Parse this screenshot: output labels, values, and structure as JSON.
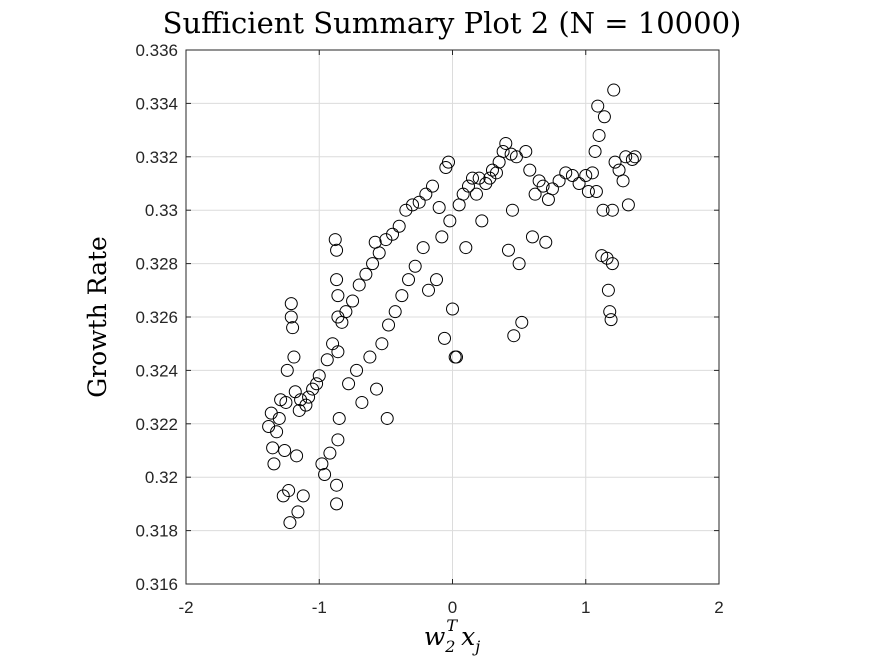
{
  "chart_data": {
    "type": "scatter",
    "title": "Sufficient Summary Plot 2 (N = 10000)",
    "xlabel": "w_2^T x_j",
    "ylabel": "Growth Rate",
    "xlim": [
      -2,
      2
    ],
    "ylim": [
      0.316,
      0.336
    ],
    "xticks": [
      "-2",
      "-1",
      "0",
      "1",
      "2"
    ],
    "yticks": [
      "0.316",
      "0.318",
      "0.32",
      "0.322",
      "0.324",
      "0.326",
      "0.328",
      "0.33",
      "0.332",
      "0.334",
      "0.336"
    ],
    "grid": true,
    "marker": "open-circle",
    "marker_color": "#000000",
    "series": [
      {
        "points": [
          [
            -1.38,
            0.3219
          ],
          [
            -1.36,
            0.3224
          ],
          [
            -1.35,
            0.3211
          ],
          [
            -1.34,
            0.3205
          ],
          [
            -1.32,
            0.3217
          ],
          [
            -1.3,
            0.3222
          ],
          [
            -1.29,
            0.3229
          ],
          [
            -1.27,
            0.3193
          ],
          [
            -1.26,
            0.321
          ],
          [
            -1.25,
            0.3228
          ],
          [
            -1.24,
            0.324
          ],
          [
            -1.23,
            0.3195
          ],
          [
            -1.22,
            0.3183
          ],
          [
            -1.21,
            0.326
          ],
          [
            -1.21,
            0.3265
          ],
          [
            -1.2,
            0.3256
          ],
          [
            -1.19,
            0.3245
          ],
          [
            -1.18,
            0.3232
          ],
          [
            -1.17,
            0.3208
          ],
          [
            -1.16,
            0.3187
          ],
          [
            -1.15,
            0.3225
          ],
          [
            -1.14,
            0.3229
          ],
          [
            -1.12,
            0.3193
          ],
          [
            -1.1,
            0.3227
          ],
          [
            -1.08,
            0.323
          ],
          [
            -1.05,
            0.3233
          ],
          [
            -1.02,
            0.3235
          ],
          [
            -1.0,
            0.3238
          ],
          [
            -0.98,
            0.3205
          ],
          [
            -0.96,
            0.3201
          ],
          [
            -0.94,
            0.3244
          ],
          [
            -0.92,
            0.3209
          ],
          [
            -0.9,
            0.325
          ],
          [
            -0.88,
            0.3289
          ],
          [
            -0.87,
            0.3285
          ],
          [
            -0.87,
            0.3274
          ],
          [
            -0.86,
            0.3268
          ],
          [
            -0.86,
            0.326
          ],
          [
            -0.86,
            0.3247
          ],
          [
            -0.86,
            0.3214
          ],
          [
            -0.87,
            0.3197
          ],
          [
            -0.87,
            0.319
          ],
          [
            -0.85,
            0.3222
          ],
          [
            -0.83,
            0.3258
          ],
          [
            -0.8,
            0.3262
          ],
          [
            -0.78,
            0.3235
          ],
          [
            -0.75,
            0.3266
          ],
          [
            -0.72,
            0.324
          ],
          [
            -0.7,
            0.3272
          ],
          [
            -0.68,
            0.3228
          ],
          [
            -0.65,
            0.3276
          ],
          [
            -0.62,
            0.3245
          ],
          [
            -0.6,
            0.328
          ],
          [
            -0.58,
            0.3288
          ],
          [
            -0.57,
            0.3233
          ],
          [
            -0.55,
            0.3284
          ],
          [
            -0.53,
            0.325
          ],
          [
            -0.5,
            0.3289
          ],
          [
            -0.49,
            0.3222
          ],
          [
            -0.48,
            0.3257
          ],
          [
            -0.45,
            0.3291
          ],
          [
            -0.43,
            0.3262
          ],
          [
            -0.4,
            0.3294
          ],
          [
            -0.38,
            0.3268
          ],
          [
            -0.35,
            0.33
          ],
          [
            -0.33,
            0.3274
          ],
          [
            -0.3,
            0.3302
          ],
          [
            -0.28,
            0.3279
          ],
          [
            -0.25,
            0.3303
          ],
          [
            -0.22,
            0.3286
          ],
          [
            -0.2,
            0.3306
          ],
          [
            -0.18,
            0.327
          ],
          [
            -0.15,
            0.3309
          ],
          [
            -0.12,
            0.3274
          ],
          [
            -0.1,
            0.3301
          ],
          [
            -0.08,
            0.329
          ],
          [
            -0.06,
            0.3252
          ],
          [
            -0.05,
            0.3316
          ],
          [
            -0.03,
            0.3318
          ],
          [
            -0.02,
            0.3296
          ],
          [
            0.0,
            0.3263
          ],
          [
            0.02,
            0.3245
          ],
          [
            0.03,
            0.3245
          ],
          [
            0.05,
            0.3302
          ],
          [
            0.08,
            0.3306
          ],
          [
            0.1,
            0.3286
          ],
          [
            0.12,
            0.3309
          ],
          [
            0.15,
            0.3312
          ],
          [
            0.18,
            0.3306
          ],
          [
            0.2,
            0.3312
          ],
          [
            0.22,
            0.3296
          ],
          [
            0.25,
            0.331
          ],
          [
            0.28,
            0.3312
          ],
          [
            0.3,
            0.3315
          ],
          [
            0.33,
            0.3314
          ],
          [
            0.35,
            0.3318
          ],
          [
            0.38,
            0.3322
          ],
          [
            0.4,
            0.3325
          ],
          [
            0.42,
            0.3285
          ],
          [
            0.44,
            0.3321
          ],
          [
            0.45,
            0.33
          ],
          [
            0.46,
            0.3253
          ],
          [
            0.48,
            0.332
          ],
          [
            0.5,
            0.328
          ],
          [
            0.52,
            0.3258
          ],
          [
            0.55,
            0.3322
          ],
          [
            0.58,
            0.3315
          ],
          [
            0.6,
            0.329
          ],
          [
            0.62,
            0.3306
          ],
          [
            0.65,
            0.3311
          ],
          [
            0.68,
            0.3309
          ],
          [
            0.7,
            0.3288
          ],
          [
            0.72,
            0.3304
          ],
          [
            0.75,
            0.3308
          ],
          [
            0.8,
            0.3311
          ],
          [
            0.85,
            0.3314
          ],
          [
            0.9,
            0.3313
          ],
          [
            0.95,
            0.331
          ],
          [
            1.0,
            0.3313
          ],
          [
            1.02,
            0.3307
          ],
          [
            1.05,
            0.3314
          ],
          [
            1.07,
            0.3322
          ],
          [
            1.08,
            0.3307
          ],
          [
            1.09,
            0.3339
          ],
          [
            1.1,
            0.3328
          ],
          [
            1.12,
            0.3283
          ],
          [
            1.13,
            0.33
          ],
          [
            1.14,
            0.3335
          ],
          [
            1.16,
            0.3282
          ],
          [
            1.17,
            0.327
          ],
          [
            1.18,
            0.3262
          ],
          [
            1.19,
            0.3259
          ],
          [
            1.2,
            0.328
          ],
          [
            1.2,
            0.33
          ],
          [
            1.21,
            0.3345
          ],
          [
            1.22,
            0.3318
          ],
          [
            1.25,
            0.3315
          ],
          [
            1.28,
            0.3311
          ],
          [
            1.3,
            0.332
          ],
          [
            1.32,
            0.3302
          ],
          [
            1.35,
            0.3319
          ],
          [
            1.37,
            0.332
          ]
        ]
      }
    ]
  }
}
